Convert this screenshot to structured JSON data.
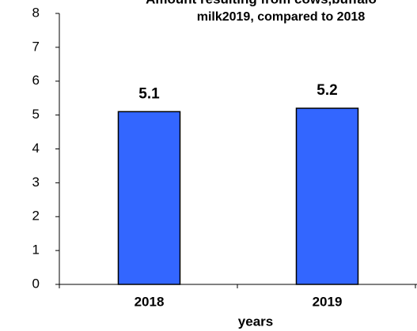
{
  "chart_data": {
    "type": "bar",
    "title": [
      "Amount resulting from cows,buffalo",
      "milk2019, compared to 2018"
    ],
    "x_label": "years",
    "categories": [
      "2018",
      "2019"
    ],
    "values": [
      5.1,
      5.2
    ],
    "color": "#3366ff",
    "ylim": [
      0,
      8
    ],
    "yticks": [
      0,
      1,
      2,
      3,
      4,
      5,
      6,
      7,
      8
    ],
    "grid": false
  }
}
